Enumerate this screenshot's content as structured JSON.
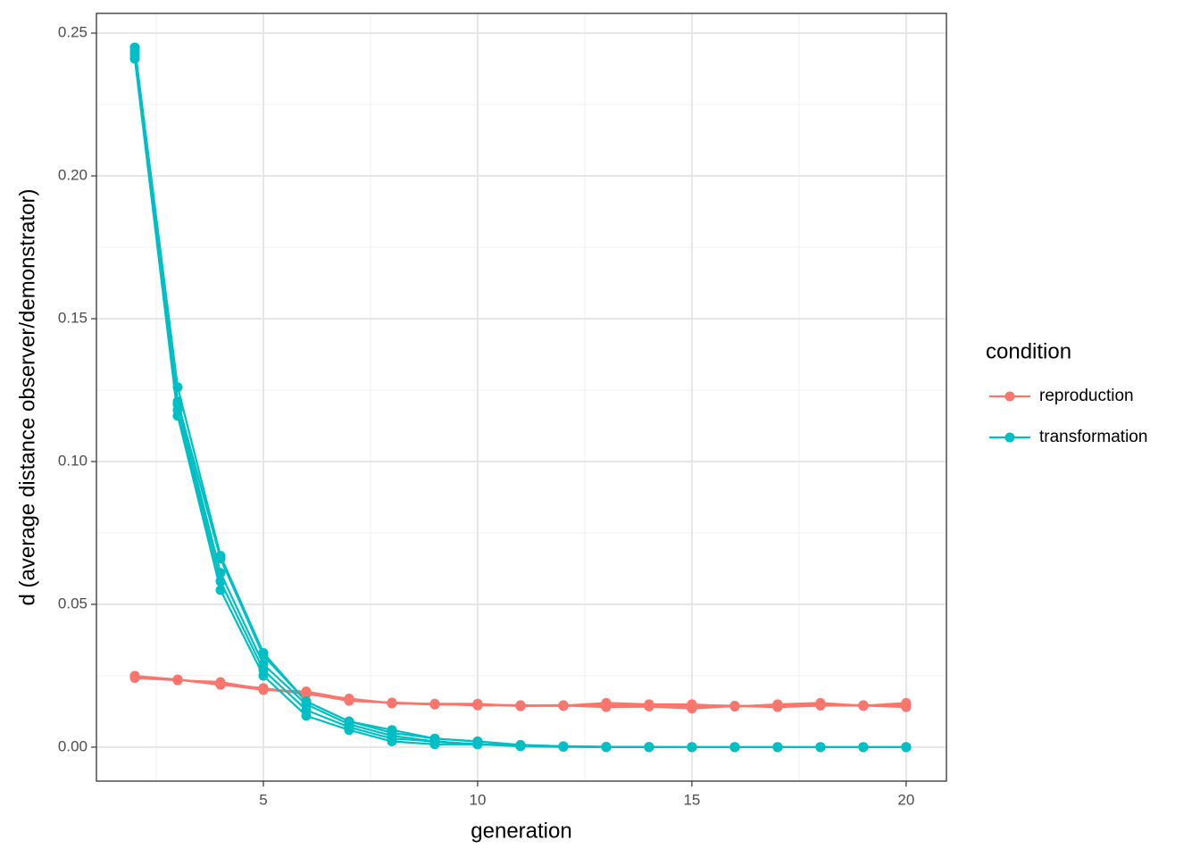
{
  "chart_data": {
    "type": "line",
    "x_label": "generation",
    "y_label": "d (average distance observer/demonstrator)",
    "legend_title": "condition",
    "grid": true,
    "xlim": [
      1.104,
      20.94
    ],
    "ylim": [
      -0.0119,
      0.2569
    ],
    "xticks": [
      5,
      10,
      15,
      20
    ],
    "yticks": [
      {
        "value": 0,
        "label": "0.00"
      },
      0.05,
      {
        "value": 0.1,
        "label": "0.10"
      },
      0.15,
      {
        "value": 0.2,
        "label": "0.20"
      },
      0.25
    ],
    "xminorticks": [
      2.5,
      7.5,
      12.5,
      17.5
    ],
    "yminorticks": [
      0.025,
      0.075,
      0.125,
      0.175,
      0.225
    ],
    "x": [
      2,
      3,
      4,
      5,
      6,
      7,
      8,
      9,
      10,
      11,
      12,
      13,
      14,
      15,
      16,
      17,
      18,
      19,
      20
    ],
    "series": [
      {
        "name": "reproduction",
        "color": "#f8766d",
        "runs": [
          [
            0.0245,
            0.0235,
            0.0225,
            0.0205,
            0.019,
            0.0165,
            0.0155,
            0.015,
            0.0148,
            0.0145,
            0.0145,
            0.0155,
            0.015,
            0.015,
            0.0142,
            0.015,
            0.0155,
            0.0145,
            0.0155
          ],
          [
            0.0248,
            0.0237,
            0.022,
            0.02,
            0.0195,
            0.0168,
            0.0153,
            0.0152,
            0.0152,
            0.0143,
            0.0146,
            0.014,
            0.0142,
            0.0135,
            0.0144,
            0.014,
            0.0145,
            0.0146,
            0.014
          ],
          [
            0.0242,
            0.0234,
            0.0228,
            0.0202,
            0.0188,
            0.0162,
            0.0156,
            0.0151,
            0.0146,
            0.0147,
            0.0144,
            0.0148,
            0.0146,
            0.0143,
            0.0143,
            0.0146,
            0.015,
            0.0144,
            0.0148
          ],
          [
            0.025,
            0.0236,
            0.0218,
            0.0207,
            0.0185,
            0.017,
            0.0154,
            0.0149,
            0.015,
            0.0146,
            0.0147,
            0.0143,
            0.0148,
            0.0147,
            0.0145,
            0.0143,
            0.0148,
            0.0147,
            0.0143
          ]
        ]
      },
      {
        "name": "transformation",
        "color": "#00bfc4",
        "runs": [
          [
            0.245,
            0.126,
            0.067,
            0.033,
            0.016,
            0.009,
            0.006,
            0.003,
            0.002,
            0.0008,
            0.0003,
            0.0001,
            0.0001,
            0,
            0,
            0,
            0,
            0,
            0
          ],
          [
            0.244,
            0.121,
            0.066,
            0.032,
            0.016,
            0.009,
            0.005,
            0.003,
            0.002,
            0.0006,
            0.0003,
            0.0001,
            0,
            0,
            0,
            0,
            0,
            0,
            0
          ],
          [
            0.243,
            0.12,
            0.061,
            0.029,
            0.015,
            0.008,
            0.004,
            0.002,
            0.001,
            0.0005,
            0.0002,
            0.0001,
            0,
            0,
            0,
            0,
            0,
            0,
            0
          ],
          [
            0.242,
            0.118,
            0.058,
            0.027,
            0.013,
            0.007,
            0.003,
            0.002,
            0.001,
            0.0004,
            0.0002,
            0,
            0,
            0,
            0,
            0,
            0,
            0,
            0
          ],
          [
            0.241,
            0.116,
            0.055,
            0.025,
            0.011,
            0.006,
            0.002,
            0.001,
            0.001,
            0.0003,
            0.0001,
            0,
            0,
            0,
            0,
            0,
            0,
            0,
            0
          ]
        ]
      }
    ]
  }
}
